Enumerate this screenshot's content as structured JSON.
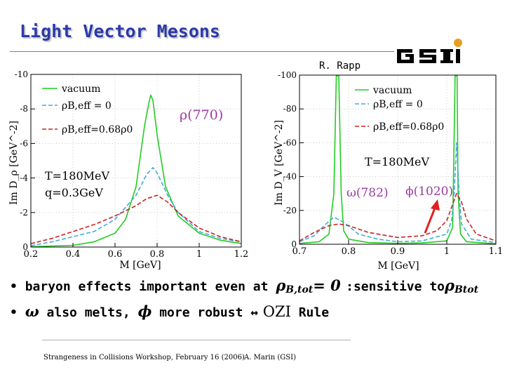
{
  "slide": {
    "title": "Light Vector Mesons",
    "credit": "R. Rapp",
    "logo_text": "GSI",
    "bullets": [
      {
        "a": "baryon effects important even at ",
        "sym1": "ρ",
        "sub1": "B,tot",
        "b": "= 0 ",
        "c": ":sensitive to",
        "sym2": "ρ",
        "sub2": "Btot"
      },
      {
        "sym1": "ω",
        "a": " also melts, ",
        "sym2": "ϕ",
        "b": " more robust ",
        "arrow": "↔",
        "ozi": " OZI",
        "c": " Rule"
      }
    ],
    "footer_left": "Strangeness in Collisions Workshop, February 16 (2006)",
    "footer_right": "A. Marin (GSI)"
  },
  "colors": {
    "title": "#2b3aa8",
    "vacuum": "#22cc22",
    "eff0": "#44aadd",
    "eff068": "#cc2222",
    "annot": "#9a3ba0",
    "arrow": "#e02020"
  },
  "chart_data": [
    {
      "type": "line",
      "xlabel": "M [GeV]",
      "ylabel": "Im D_ρ [GeV^-2]",
      "xlim": [
        0.2,
        1.2
      ],
      "ylim": [
        0,
        -10
      ],
      "xticks": [
        "0.2",
        "0.4",
        "0.6",
        "0.8",
        "1",
        "1.2"
      ],
      "yticks": [
        "0",
        "-2",
        "-4",
        "-6",
        "-8",
        "-10"
      ],
      "annotation": "ρ(770)",
      "conditions": [
        "T=180MeV",
        "q=0.3GeV"
      ],
      "legend": [
        "vacuum",
        "ρB,eff = 0",
        "ρB,eff=0.68ρ0"
      ],
      "series": [
        {
          "name": "vacuum",
          "x": [
            0.2,
            0.4,
            0.5,
            0.6,
            0.65,
            0.7,
            0.74,
            0.76,
            0.77,
            0.78,
            0.8,
            0.84,
            0.9,
            1.0,
            1.1,
            1.2
          ],
          "y": [
            -0.02,
            -0.1,
            -0.3,
            -0.8,
            -1.6,
            -3.5,
            -7.0,
            -8.3,
            -8.8,
            -8.5,
            -6.5,
            -3.5,
            -1.8,
            -0.8,
            -0.4,
            -0.2
          ]
        },
        {
          "name": "ρB,eff = 0",
          "x": [
            0.2,
            0.3,
            0.4,
            0.5,
            0.6,
            0.7,
            0.75,
            0.78,
            0.8,
            0.85,
            0.9,
            1.0,
            1.1,
            1.2
          ],
          "y": [
            -0.08,
            -0.3,
            -0.6,
            -0.9,
            -1.6,
            -3.0,
            -4.2,
            -4.6,
            -4.3,
            -3.0,
            -2.0,
            -0.9,
            -0.5,
            -0.3
          ]
        },
        {
          "name": "ρB,eff=0.68ρ0",
          "x": [
            0.2,
            0.3,
            0.4,
            0.5,
            0.6,
            0.7,
            0.75,
            0.8,
            0.85,
            0.9,
            1.0,
            1.1,
            1.2
          ],
          "y": [
            -0.2,
            -0.5,
            -0.9,
            -1.3,
            -1.8,
            -2.4,
            -2.8,
            -3.0,
            -2.6,
            -2.0,
            -1.1,
            -0.6,
            -0.3
          ]
        }
      ]
    },
    {
      "type": "line",
      "xlabel": "M [GeV]",
      "ylabel": "Im D_V [GeV^-2]",
      "xlim": [
        0.7,
        1.1
      ],
      "ylim": [
        0,
        -100
      ],
      "xticks": [
        "0.7",
        "0.8",
        "0.9",
        "1",
        "1.1"
      ],
      "yticks": [
        "0",
        "-20",
        "-40",
        "-60",
        "-80",
        "-100"
      ],
      "annotations": [
        "ω(782)",
        "ϕ(1020)"
      ],
      "conditions": [
        "T=180MeV"
      ],
      "legend": [
        "vacuum",
        "ρB,eff = 0",
        "ρB,eff=0.68ρ0"
      ],
      "series": [
        {
          "name": "vacuum",
          "x": [
            0.7,
            0.74,
            0.76,
            0.77,
            0.775,
            0.78,
            0.785,
            0.79,
            0.8,
            0.84,
            0.9,
            0.95,
            1.0,
            1.012,
            1.017,
            1.019,
            1.021,
            1.023,
            1.028,
            1.04,
            1.1
          ],
          "y": [
            -0.5,
            -1.5,
            -6,
            -30,
            -100,
            -100,
            -30,
            -8,
            -3,
            -1,
            -0.5,
            -0.8,
            -2,
            -10,
            -100,
            -100,
            -100,
            -30,
            -6,
            -1.5,
            -0.3
          ]
        },
        {
          "name": "ρB,eff = 0",
          "x": [
            0.7,
            0.73,
            0.75,
            0.77,
            0.79,
            0.82,
            0.86,
            0.9,
            0.95,
            1.0,
            1.01,
            1.015,
            1.02,
            1.025,
            1.03,
            1.05,
            1.1
          ],
          "y": [
            -1.5,
            -5,
            -11,
            -16,
            -13,
            -6,
            -3,
            -1.5,
            -2,
            -6,
            -14,
            -30,
            -60,
            -30,
            -12,
            -3,
            -1
          ]
        },
        {
          "name": "ρB,eff=0.68ρ0",
          "x": [
            0.7,
            0.73,
            0.76,
            0.78,
            0.8,
            0.84,
            0.9,
            0.95,
            0.98,
            1.0,
            1.01,
            1.02,
            1.03,
            1.04,
            1.06,
            1.1
          ],
          "y": [
            -2,
            -7,
            -11,
            -12,
            -11,
            -7,
            -4,
            -5,
            -8,
            -14,
            -22,
            -30,
            -25,
            -15,
            -6,
            -2
          ]
        }
      ]
    }
  ]
}
